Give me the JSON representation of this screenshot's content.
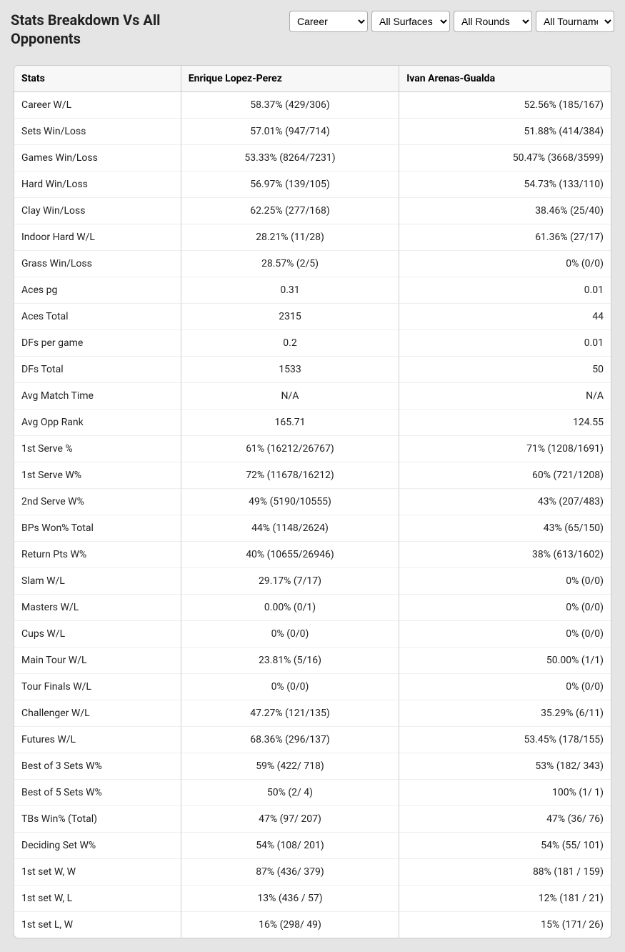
{
  "title": "Stats Breakdown Vs All Opponents",
  "filters": {
    "career": {
      "selected": "Career",
      "options": [
        "Career"
      ]
    },
    "surface": {
      "selected": "All Surfaces",
      "options": [
        "All Surfaces"
      ]
    },
    "rounds": {
      "selected": "All Rounds",
      "options": [
        "All Rounds"
      ]
    },
    "tournaments": {
      "selected": "All Tournaments",
      "options": [
        "All Tournaments"
      ]
    }
  },
  "table": {
    "columns": [
      "Stats",
      "Enrique Lopez-Perez",
      "Ivan Arenas-Gualda"
    ],
    "column_align": [
      "left",
      "center",
      "right"
    ],
    "rows": [
      [
        "Career W/L",
        "58.37% (429/306)",
        "52.56% (185/167)"
      ],
      [
        "Sets Win/Loss",
        "57.01% (947/714)",
        "51.88% (414/384)"
      ],
      [
        "Games Win/Loss",
        "53.33% (8264/7231)",
        "50.47% (3668/3599)"
      ],
      [
        "Hard Win/Loss",
        "56.97% (139/105)",
        "54.73% (133/110)"
      ],
      [
        "Clay Win/Loss",
        "62.25% (277/168)",
        "38.46% (25/40)"
      ],
      [
        "Indoor Hard W/L",
        "28.21% (11/28)",
        "61.36% (27/17)"
      ],
      [
        "Grass Win/Loss",
        "28.57% (2/5)",
        "0% (0/0)"
      ],
      [
        "Aces pg",
        "0.31",
        "0.01"
      ],
      [
        "Aces Total",
        "2315",
        "44"
      ],
      [
        "DFs per game",
        "0.2",
        "0.01"
      ],
      [
        "DFs Total",
        "1533",
        "50"
      ],
      [
        "Avg Match Time",
        "N/A",
        "N/A"
      ],
      [
        "Avg Opp Rank",
        "165.71",
        "124.55"
      ],
      [
        "1st Serve %",
        "61% (16212/26767)",
        "71% (1208/1691)"
      ],
      [
        "1st Serve W%",
        "72% (11678/16212)",
        "60% (721/1208)"
      ],
      [
        "2nd Serve W%",
        "49% (5190/10555)",
        "43% (207/483)"
      ],
      [
        "BPs Won% Total",
        "44% (1148/2624)",
        "43% (65/150)"
      ],
      [
        "Return Pts W%",
        "40% (10655/26946)",
        "38% (613/1602)"
      ],
      [
        "Slam W/L",
        "29.17% (7/17)",
        "0% (0/0)"
      ],
      [
        "Masters W/L",
        "0.00% (0/1)",
        "0% (0/0)"
      ],
      [
        "Cups W/L",
        "0% (0/0)",
        "0% (0/0)"
      ],
      [
        "Main Tour W/L",
        "23.81% (5/16)",
        "50.00% (1/1)"
      ],
      [
        "Tour Finals W/L",
        "0% (0/0)",
        "0% (0/0)"
      ],
      [
        "Challenger W/L",
        "47.27% (121/135)",
        "35.29% (6/11)"
      ],
      [
        "Futures W/L",
        "68.36% (296/137)",
        "53.45% (178/155)"
      ],
      [
        "Best of 3 Sets W%",
        "59% (422/ 718)",
        "53% (182/ 343)"
      ],
      [
        "Best of 5 Sets W%",
        "50% (2/ 4)",
        "100% (1/ 1)"
      ],
      [
        "TBs Win% (Total)",
        "47% (97/ 207)",
        "47% (36/ 76)"
      ],
      [
        "Deciding Set W%",
        "54% (108/ 201)",
        "54% (55/ 101)"
      ],
      [
        "1st set W, W",
        "87% (436/ 379)",
        "88% (181 / 159)"
      ],
      [
        "1st set W, L",
        "13% (436 / 57)",
        "12% (181 / 21)"
      ],
      [
        "1st set L, W",
        "16% (298/ 49)",
        "15% (171/ 26)"
      ]
    ]
  },
  "styling": {
    "background_color": "#e5e5e5",
    "table_bg": "#ffffff",
    "header_bg": "#f7f7f7",
    "border_color": "#cccccc",
    "row_divider_color": "#eeeeee",
    "text_color": "#222222",
    "title_fontsize": 20,
    "cell_fontsize": 14
  }
}
